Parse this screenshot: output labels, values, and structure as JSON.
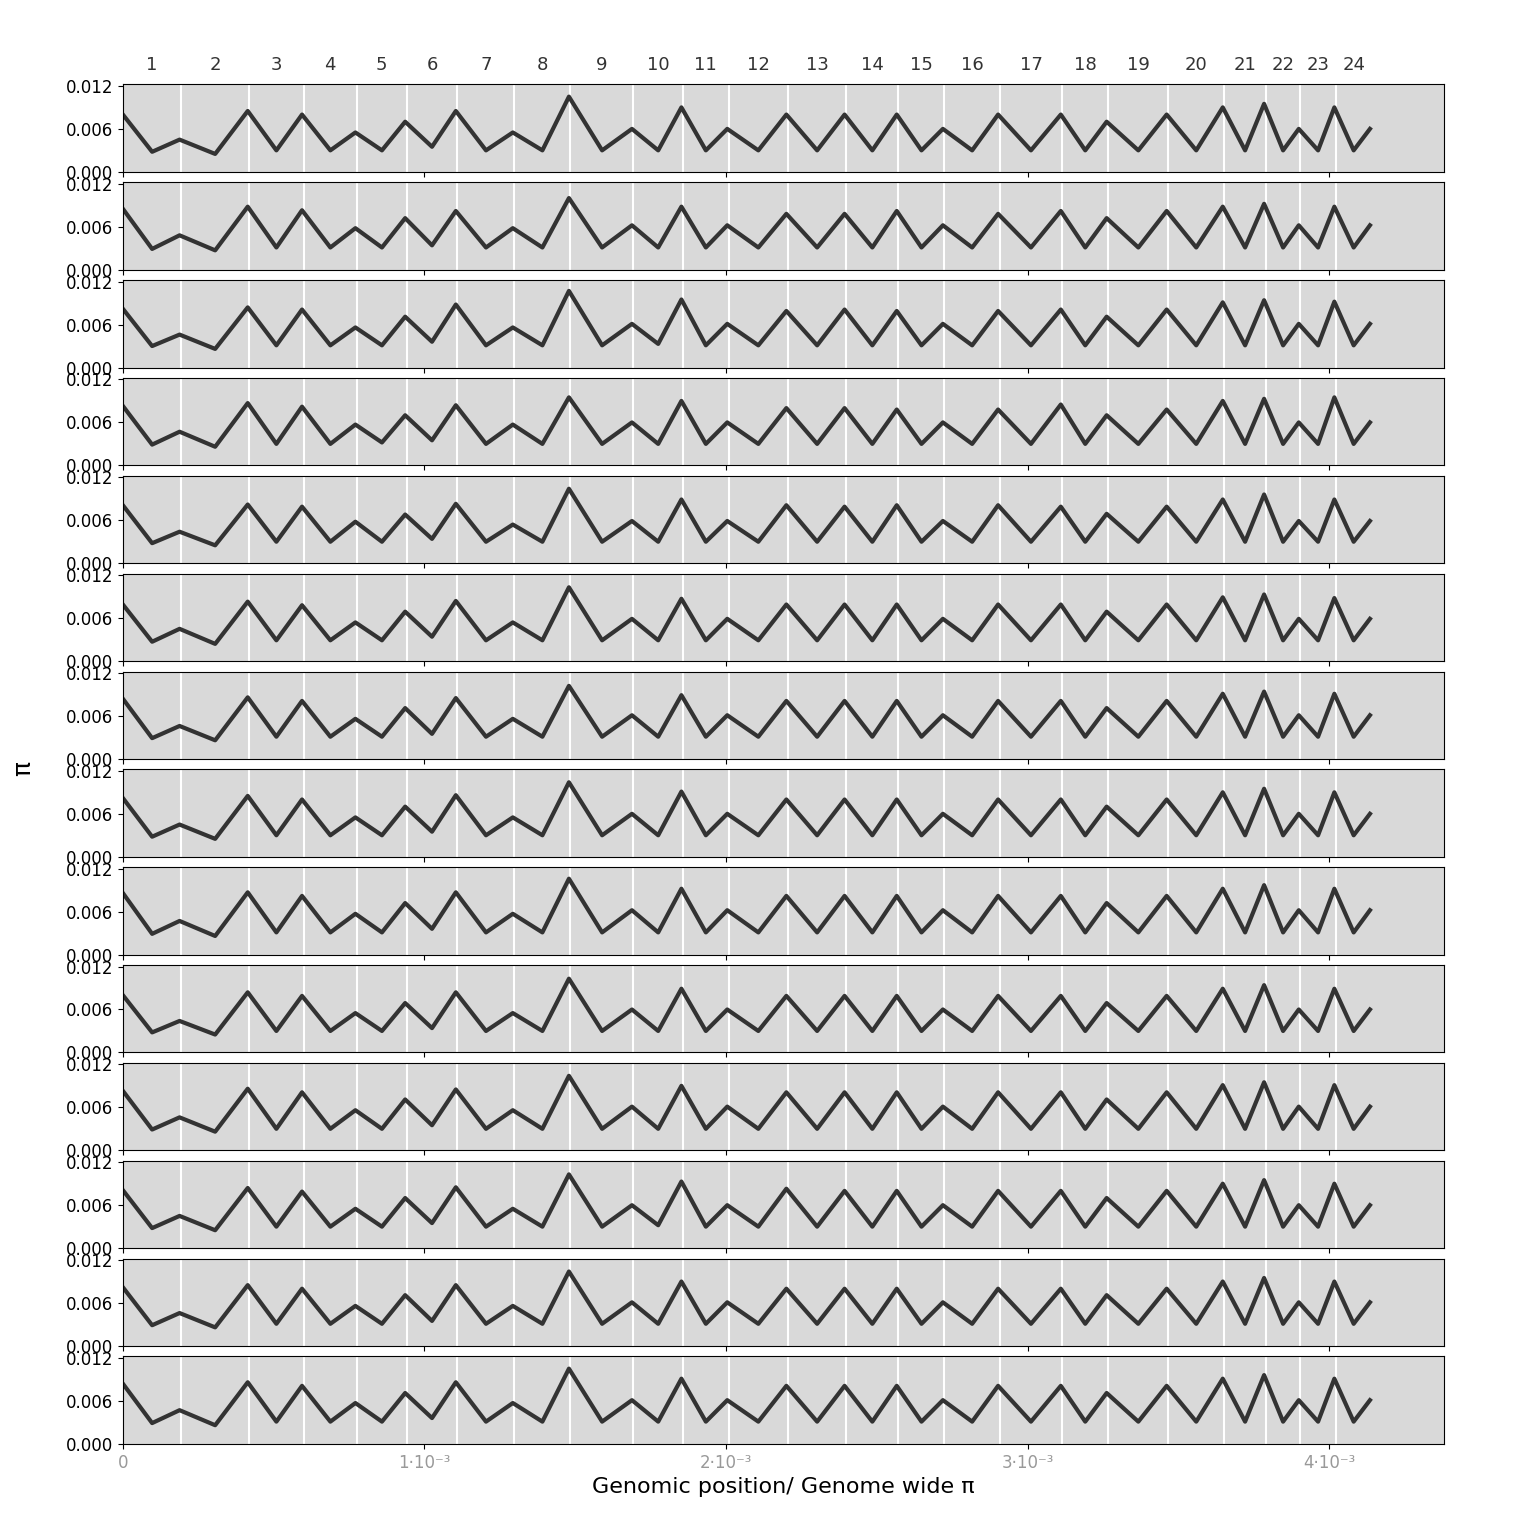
{
  "chart_data": {
    "type": "line",
    "x_label": "Genomic position/ Genome wide π",
    "y_label": "π",
    "color": "#333333",
    "grid": false,
    "chromosomes": {
      "labels": [
        "1",
        "2",
        "3",
        "4",
        "5",
        "6",
        "7",
        "8",
        "9",
        "10",
        "11",
        "12",
        "13",
        "14",
        "15",
        "16",
        "17",
        "18",
        "19",
        "20",
        "21",
        "22",
        "23",
        "24"
      ],
      "bounds": [
        0,
        0.000193,
        0.000419,
        0.000599,
        0.000776,
        0.000941,
        0.001109,
        0.001298,
        0.001484,
        0.001693,
        0.001857,
        0.002009,
        0.002205,
        0.002398,
        0.002571,
        0.002724,
        0.002907,
        0.003115,
        0.003267,
        0.003466,
        0.003652,
        0.003789,
        0.003904,
        0.004022,
        0.00414
      ]
    },
    "x": [
      0,
      9.7e-05,
      0.000188,
      0.000306,
      0.000414,
      0.000509,
      0.000594,
      0.000688,
      0.000771,
      0.000859,
      0.000936,
      0.001025,
      0.001104,
      0.001204,
      0.001293,
      0.001391,
      0.001479,
      0.001589,
      0.001688,
      0.001775,
      0.001852,
      0.001933,
      0.002004,
      0.002107,
      0.0022,
      0.002302,
      0.002393,
      0.002485,
      0.002566,
      0.002648,
      0.002719,
      0.002816,
      0.002902,
      0.003011,
      0.00311,
      0.003191,
      0.003262,
      0.003367,
      0.003461,
      0.003559,
      0.003647,
      0.003721,
      0.003784,
      0.003847,
      0.003899,
      0.003963,
      0.004017,
      0.004081,
      0.004135
    ],
    "series": [
      {
        "values": [
          0.008,
          0.0028,
          0.0045,
          0.0025,
          0.0085,
          0.003,
          0.008,
          0.003,
          0.0055,
          0.003,
          0.007,
          0.0035,
          0.0085,
          0.003,
          0.0055,
          0.003,
          0.0105,
          0.003,
          0.006,
          0.003,
          0.009,
          0.003,
          0.006,
          0.003,
          0.008,
          0.003,
          0.008,
          0.003,
          0.008,
          0.003,
          0.006,
          0.003,
          0.008,
          0.003,
          0.008,
          0.003,
          0.007,
          0.003,
          0.008,
          0.003,
          0.009,
          0.003,
          0.0095,
          0.003,
          0.006,
          0.003,
          0.009,
          0.003,
          0.006
        ]
      },
      {
        "values": [
          0.0085,
          0.0029,
          0.0048,
          0.0027,
          0.0088,
          0.0031,
          0.0083,
          0.0031,
          0.0058,
          0.0031,
          0.0072,
          0.0034,
          0.0082,
          0.0031,
          0.0058,
          0.0031,
          0.01,
          0.0031,
          0.0062,
          0.0031,
          0.0088,
          0.0031,
          0.0062,
          0.0031,
          0.0078,
          0.0031,
          0.0078,
          0.0031,
          0.0082,
          0.0031,
          0.0062,
          0.0031,
          0.0078,
          0.0031,
          0.0082,
          0.0031,
          0.0072,
          0.0031,
          0.0082,
          0.0031,
          0.0088,
          0.0031,
          0.0092,
          0.0031,
          0.0062,
          0.0031,
          0.0088,
          0.0031,
          0.0062
        ]
      },
      {
        "values": [
          0.0082,
          0.003,
          0.0046,
          0.0026,
          0.0084,
          0.0031,
          0.0081,
          0.0031,
          0.0056,
          0.0031,
          0.0071,
          0.0036,
          0.0088,
          0.0031,
          0.0056,
          0.0031,
          0.0107,
          0.0031,
          0.0061,
          0.0033,
          0.0095,
          0.0031,
          0.0061,
          0.0031,
          0.0079,
          0.0031,
          0.0081,
          0.0031,
          0.0079,
          0.0031,
          0.0061,
          0.0031,
          0.0079,
          0.0031,
          0.0081,
          0.0031,
          0.0071,
          0.0031,
          0.0081,
          0.0031,
          0.0091,
          0.0031,
          0.0094,
          0.0031,
          0.0061,
          0.0031,
          0.0092,
          0.0031,
          0.0061
        ]
      },
      {
        "values": [
          0.0083,
          0.0029,
          0.0047,
          0.0026,
          0.0087,
          0.003,
          0.0082,
          0.003,
          0.0057,
          0.0032,
          0.007,
          0.0035,
          0.0084,
          0.003,
          0.0057,
          0.003,
          0.0095,
          0.003,
          0.006,
          0.003,
          0.009,
          0.003,
          0.006,
          0.003,
          0.008,
          0.003,
          0.008,
          0.003,
          0.0078,
          0.003,
          0.006,
          0.003,
          0.0078,
          0.003,
          0.0085,
          0.003,
          0.007,
          0.003,
          0.0078,
          0.003,
          0.009,
          0.003,
          0.0093,
          0.003,
          0.006,
          0.003,
          0.0095,
          0.003,
          0.006
        ]
      },
      {
        "values": [
          0.0081,
          0.0028,
          0.0044,
          0.0025,
          0.0082,
          0.003,
          0.0079,
          0.003,
          0.0058,
          0.003,
          0.0068,
          0.0034,
          0.0083,
          0.003,
          0.0054,
          0.003,
          0.0104,
          0.003,
          0.0059,
          0.003,
          0.0089,
          0.003,
          0.0059,
          0.003,
          0.0081,
          0.003,
          0.0079,
          0.003,
          0.0081,
          0.003,
          0.0059,
          0.003,
          0.0081,
          0.003,
          0.0079,
          0.003,
          0.0069,
          0.003,
          0.0079,
          0.003,
          0.0089,
          0.003,
          0.0096,
          0.003,
          0.0059,
          0.003,
          0.0089,
          0.003,
          0.0059
        ]
      },
      {
        "values": [
          0.0079,
          0.0027,
          0.0045,
          0.0024,
          0.0083,
          0.0029,
          0.0078,
          0.0029,
          0.0054,
          0.0029,
          0.0069,
          0.0034,
          0.0084,
          0.0029,
          0.0054,
          0.0029,
          0.0103,
          0.0029,
          0.0059,
          0.0029,
          0.0087,
          0.0029,
          0.0059,
          0.0029,
          0.0079,
          0.0029,
          0.0079,
          0.0029,
          0.0079,
          0.0029,
          0.0059,
          0.0029,
          0.0079,
          0.0029,
          0.0079,
          0.0029,
          0.0069,
          0.0029,
          0.0079,
          0.0029,
          0.0089,
          0.0029,
          0.0093,
          0.0029,
          0.0059,
          0.0029,
          0.0088,
          0.0029,
          0.0059
        ]
      },
      {
        "values": [
          0.0084,
          0.0029,
          0.0046,
          0.0026,
          0.0086,
          0.0031,
          0.0081,
          0.0031,
          0.0056,
          0.0031,
          0.0071,
          0.0035,
          0.0085,
          0.0031,
          0.0056,
          0.0031,
          0.0102,
          0.0031,
          0.0061,
          0.0031,
          0.0089,
          0.0031,
          0.0061,
          0.0031,
          0.0081,
          0.0031,
          0.0081,
          0.0031,
          0.0081,
          0.0031,
          0.0061,
          0.0031,
          0.0081,
          0.0031,
          0.0081,
          0.0031,
          0.0071,
          0.0031,
          0.0081,
          0.0031,
          0.0091,
          0.0031,
          0.0094,
          0.0031,
          0.0061,
          0.0031,
          0.0091,
          0.0031,
          0.0061
        ]
      },
      {
        "values": [
          0.0082,
          0.0028,
          0.0045,
          0.0025,
          0.0085,
          0.003,
          0.008,
          0.003,
          0.0055,
          0.003,
          0.007,
          0.0035,
          0.0086,
          0.003,
          0.0055,
          0.003,
          0.0104,
          0.003,
          0.006,
          0.003,
          0.0091,
          0.003,
          0.006,
          0.003,
          0.008,
          0.003,
          0.008,
          0.003,
          0.008,
          0.003,
          0.006,
          0.003,
          0.008,
          0.003,
          0.008,
          0.003,
          0.007,
          0.003,
          0.008,
          0.003,
          0.009,
          0.003,
          0.0095,
          0.003,
          0.006,
          0.003,
          0.009,
          0.003,
          0.006
        ]
      },
      {
        "values": [
          0.0086,
          0.0029,
          0.0047,
          0.0026,
          0.0087,
          0.0031,
          0.0082,
          0.0031,
          0.0057,
          0.0031,
          0.0072,
          0.0036,
          0.0087,
          0.0031,
          0.0057,
          0.0031,
          0.0106,
          0.0031,
          0.0062,
          0.0031,
          0.0092,
          0.0031,
          0.0062,
          0.0031,
          0.0082,
          0.0031,
          0.0082,
          0.0031,
          0.0082,
          0.0031,
          0.0062,
          0.0031,
          0.0082,
          0.0031,
          0.0082,
          0.0031,
          0.0072,
          0.0031,
          0.0082,
          0.0031,
          0.0092,
          0.0031,
          0.0097,
          0.0031,
          0.0062,
          0.0031,
          0.0092,
          0.0031,
          0.0062
        ]
      },
      {
        "values": [
          0.008,
          0.0028,
          0.0044,
          0.0025,
          0.0084,
          0.003,
          0.0079,
          0.003,
          0.0055,
          0.003,
          0.0069,
          0.0034,
          0.0084,
          0.003,
          0.0055,
          0.003,
          0.0103,
          0.003,
          0.006,
          0.003,
          0.0089,
          0.003,
          0.006,
          0.003,
          0.0079,
          0.003,
          0.0079,
          0.003,
          0.0079,
          0.003,
          0.006,
          0.003,
          0.0079,
          0.003,
          0.0079,
          0.003,
          0.0069,
          0.003,
          0.0079,
          0.003,
          0.0089,
          0.003,
          0.0094,
          0.003,
          0.006,
          0.003,
          0.0089,
          0.003,
          0.006
        ]
      },
      {
        "values": [
          0.0083,
          0.0029,
          0.0046,
          0.0026,
          0.0086,
          0.003,
          0.0081,
          0.003,
          0.0056,
          0.003,
          0.0071,
          0.0035,
          0.0085,
          0.003,
          0.0056,
          0.003,
          0.0104,
          0.003,
          0.0061,
          0.003,
          0.009,
          0.003,
          0.0061,
          0.003,
          0.0081,
          0.003,
          0.0081,
          0.003,
          0.0081,
          0.003,
          0.0061,
          0.003,
          0.0081,
          0.003,
          0.0081,
          0.003,
          0.0071,
          0.003,
          0.0081,
          0.003,
          0.0091,
          0.003,
          0.0095,
          0.003,
          0.0061,
          0.003,
          0.0091,
          0.003,
          0.0061
        ]
      },
      {
        "values": [
          0.0081,
          0.0028,
          0.0045,
          0.0025,
          0.0084,
          0.003,
          0.0079,
          0.003,
          0.0055,
          0.003,
          0.007,
          0.0035,
          0.0085,
          0.003,
          0.0055,
          0.003,
          0.0103,
          0.003,
          0.006,
          0.0032,
          0.0093,
          0.003,
          0.006,
          0.003,
          0.0083,
          0.003,
          0.008,
          0.003,
          0.008,
          0.003,
          0.006,
          0.003,
          0.008,
          0.003,
          0.008,
          0.003,
          0.007,
          0.003,
          0.008,
          0.003,
          0.009,
          0.003,
          0.0095,
          0.003,
          0.006,
          0.003,
          0.009,
          0.003,
          0.006
        ]
      },
      {
        "values": [
          0.0082,
          0.0029,
          0.0046,
          0.0026,
          0.0085,
          0.0031,
          0.008,
          0.0031,
          0.0056,
          0.0031,
          0.0071,
          0.0035,
          0.0085,
          0.0031,
          0.0056,
          0.0031,
          0.0104,
          0.0031,
          0.0061,
          0.0031,
          0.009,
          0.0031,
          0.0061,
          0.0031,
          0.008,
          0.0031,
          0.008,
          0.0031,
          0.008,
          0.0031,
          0.0061,
          0.0031,
          0.008,
          0.0031,
          0.008,
          0.0031,
          0.0071,
          0.0031,
          0.008,
          0.0031,
          0.009,
          0.0031,
          0.0095,
          0.0031,
          0.0061,
          0.0031,
          0.009,
          0.0031,
          0.0061
        ]
      },
      {
        "values": [
          0.0084,
          0.0029,
          0.0047,
          0.0026,
          0.0086,
          0.0031,
          0.0081,
          0.0031,
          0.0057,
          0.0031,
          0.0071,
          0.0036,
          0.0086,
          0.0031,
          0.0057,
          0.0031,
          0.0105,
          0.0031,
          0.0061,
          0.0031,
          0.0091,
          0.0031,
          0.0061,
          0.0031,
          0.0081,
          0.0031,
          0.0081,
          0.0031,
          0.0081,
          0.0031,
          0.0061,
          0.0031,
          0.0081,
          0.0031,
          0.0081,
          0.0031,
          0.0071,
          0.0031,
          0.0081,
          0.0031,
          0.0091,
          0.0031,
          0.0096,
          0.0031,
          0.0061,
          0.0031,
          0.0091,
          0.0031,
          0.0061
        ]
      }
    ],
    "xlim": [
      0,
      0.00438
    ],
    "xticks": [
      0,
      {
        "value": 0.001,
        "label": "1·10⁻³"
      },
      {
        "value": 0.002,
        "label": "2·10⁻³"
      },
      {
        "value": 0.003,
        "label": "3·10⁻³"
      },
      {
        "value": 0.004,
        "label": "4·10⁻³"
      }
    ],
    "ylim": [
      0,
      0.0122
    ],
    "yticks": [
      {
        "value": 0,
        "label": "0.000"
      },
      {
        "value": 0.006,
        "label": "0.006"
      },
      {
        "value": 0.012,
        "label": "0.012"
      }
    ]
  }
}
